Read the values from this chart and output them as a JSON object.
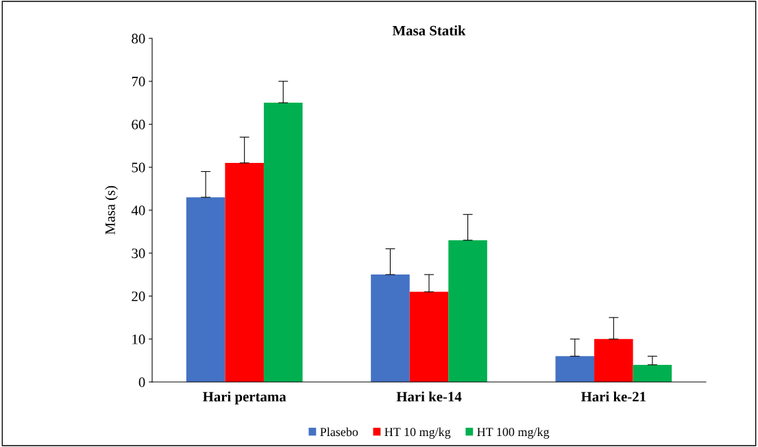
{
  "chart_data": {
    "type": "bar",
    "title": "Masa Statik",
    "ylabel": "Masa (s)",
    "categories": [
      "Hari pertama",
      "Hari ke-14",
      "Hari ke-21"
    ],
    "series": [
      {
        "name": "Plasebo",
        "color": "#4472c4",
        "values": [
          43,
          25,
          6
        ],
        "errors": [
          [
            43,
            49
          ],
          [
            25,
            31
          ],
          [
            6,
            10
          ]
        ]
      },
      {
        "name": "HT 10 mg/kg",
        "color": "#ff0000",
        "values": [
          51,
          21,
          10
        ],
        "errors": [
          [
            51,
            57
          ],
          [
            21,
            25
          ],
          [
            10,
            15
          ]
        ]
      },
      {
        "name": "HT 100 mg/kg",
        "color": "#00b050",
        "values": [
          65,
          33,
          4
        ],
        "errors": [
          [
            65,
            70
          ],
          [
            33,
            39
          ],
          [
            4,
            6
          ]
        ]
      }
    ],
    "ylim": [
      0,
      80
    ],
    "yticks": [
      0,
      10,
      20,
      30,
      40,
      50,
      60,
      70,
      80
    ],
    "grid": false,
    "legend": "bottom"
  }
}
